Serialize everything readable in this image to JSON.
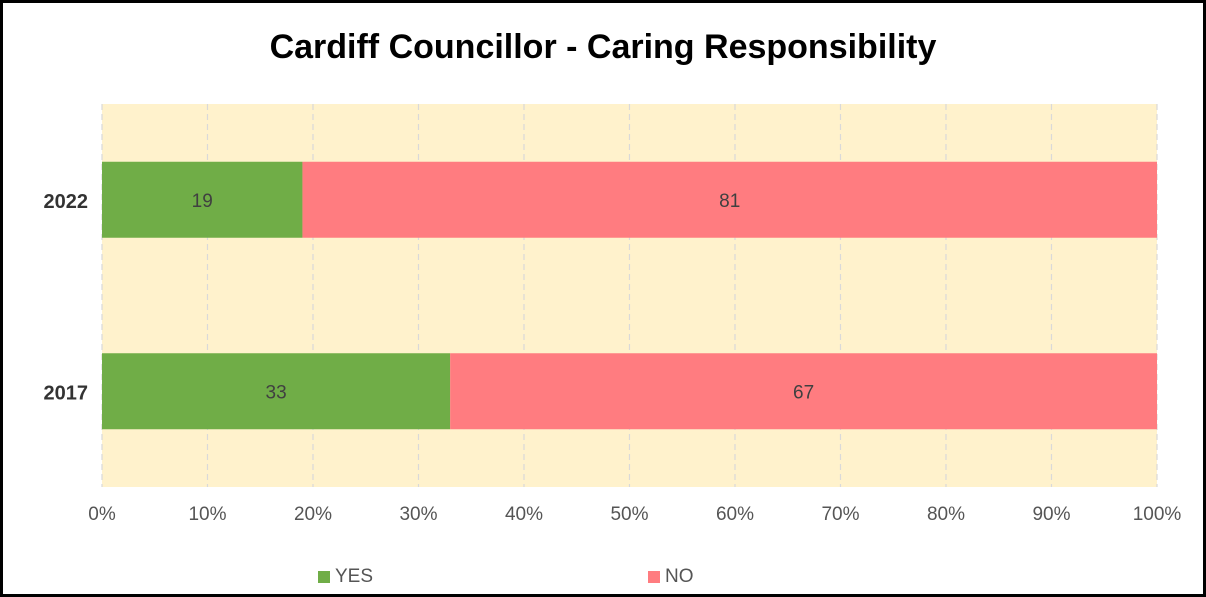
{
  "chart_data": {
    "type": "bar",
    "orientation": "horizontal",
    "stacked": "percent",
    "title": "Cardiff Councillor - Caring Responsibility",
    "categories": [
      "2022",
      "2017"
    ],
    "series": [
      {
        "name": "YES",
        "values": [
          19,
          33
        ],
        "color": "#70AD47"
      },
      {
        "name": "NO",
        "values": [
          81,
          67
        ],
        "color": "#FF7C80"
      }
    ],
    "xticks": [
      "0%",
      "10%",
      "20%",
      "30%",
      "40%",
      "50%",
      "60%",
      "70%",
      "80%",
      "90%",
      "100%"
    ],
    "xlim": [
      0,
      100
    ],
    "grid": true,
    "plot_background": "#FFF2CC",
    "legend_position": "bottom"
  }
}
